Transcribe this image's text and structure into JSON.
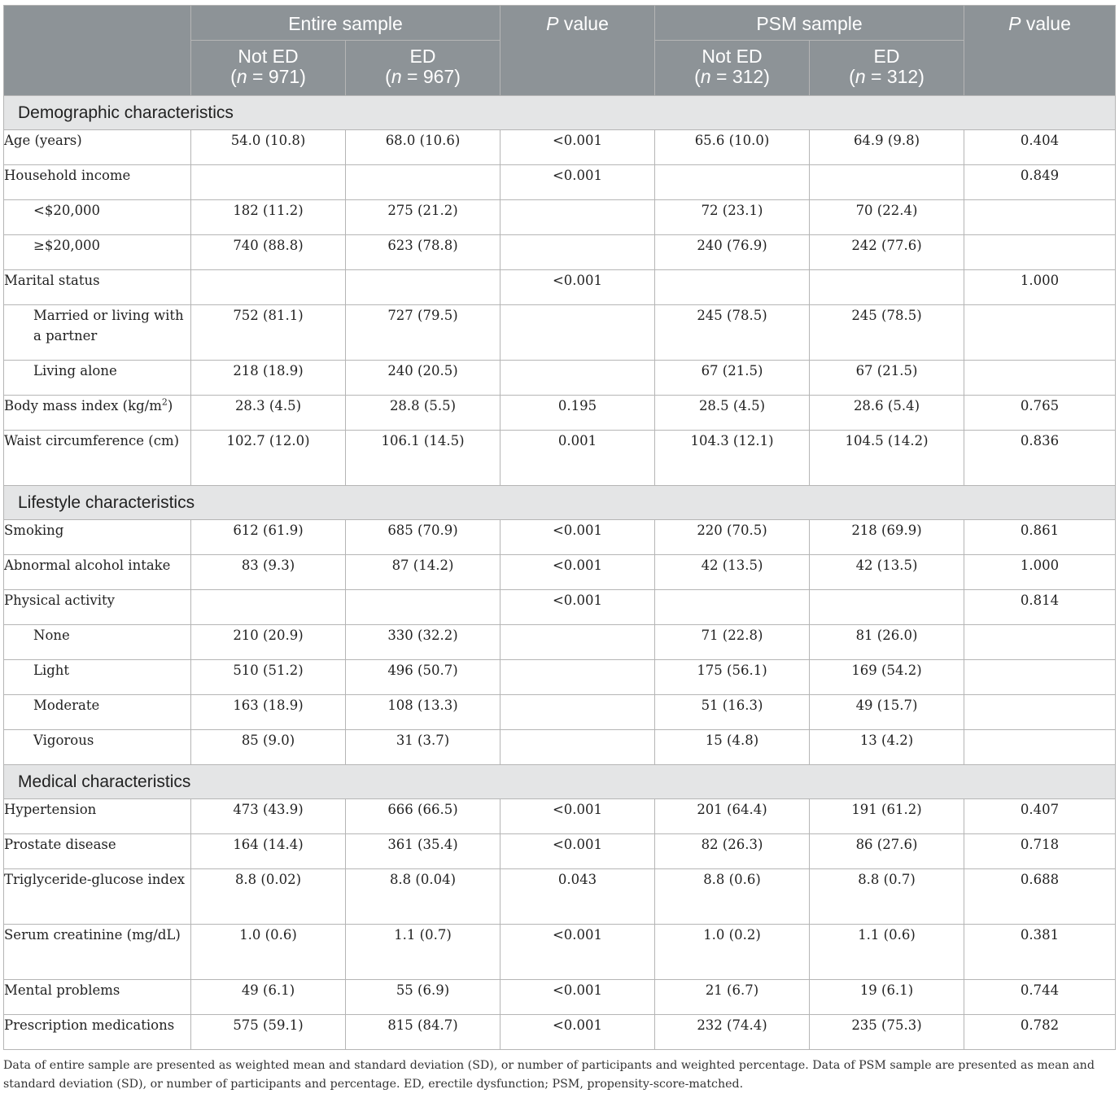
{
  "header": {
    "entire_sample": "Entire sample",
    "psm_sample": "PSM sample",
    "p_value_prefix": "P",
    "p_value_suffix": " value",
    "not_ed": "Not ED",
    "ed": "ED",
    "n_prefix": "n",
    "entire_not_ed_n": " = 971)",
    "entire_ed_n": " = 967)",
    "psm_not_ed_n": " = 312)",
    "psm_ed_n": " = 312)"
  },
  "sections": [
    {
      "title": "Demographic characteristics",
      "rows": [
        {
          "label": "Age (years)",
          "indent": false,
          "tall": false,
          "cells": [
            "54.0 (10.8)",
            "68.0 (10.6)",
            "<0.001",
            "65.6 (10.0)",
            "64.9 (9.8)",
            "0.404"
          ]
        },
        {
          "label": "Household income",
          "indent": false,
          "tall": false,
          "cells": [
            "",
            "",
            "<0.001",
            "",
            "",
            "0.849"
          ]
        },
        {
          "label": "<$20,000",
          "indent": true,
          "tall": false,
          "cells": [
            "182 (11.2)",
            "275 (21.2)",
            "",
            "72 (23.1)",
            "70 (22.4)",
            ""
          ]
        },
        {
          "label": "≥$20,000",
          "indent": true,
          "tall": false,
          "cells": [
            "740 (88.8)",
            "623 (78.8)",
            "",
            "240 (76.9)",
            "242 (77.6)",
            ""
          ]
        },
        {
          "label": "Marital status",
          "indent": false,
          "tall": false,
          "cells": [
            "",
            "",
            "<0.001",
            "",
            "",
            "1.000"
          ]
        },
        {
          "label": "Married or living with a partner",
          "indent": true,
          "tall": true,
          "cells": [
            "752 (81.1)",
            "727 (79.5)",
            "",
            "245 (78.5)",
            "245 (78.5)",
            ""
          ]
        },
        {
          "label": "Living alone",
          "indent": true,
          "tall": false,
          "cells": [
            "218 (18.9)",
            "240 (20.5)",
            "",
            "67 (21.5)",
            "67 (21.5)",
            ""
          ]
        },
        {
          "label": "Body mass index (kg/m",
          "label_sup": "2",
          "label_end": ")",
          "indent": false,
          "tall": false,
          "cells": [
            "28.3 (4.5)",
            "28.8 (5.5)",
            "0.195",
            "28.5 (4.5)",
            "28.6 (5.4)",
            "0.765"
          ]
        },
        {
          "label": "Waist circumference (cm)",
          "indent": false,
          "tall": true,
          "cells": [
            "102.7 (12.0)",
            "106.1 (14.5)",
            "0.001",
            "104.3 (12.1)",
            "104.5 (14.2)",
            "0.836"
          ]
        }
      ]
    },
    {
      "title": "Lifestyle characteristics",
      "rows": [
        {
          "label": "Smoking",
          "indent": false,
          "tall": false,
          "cells": [
            "612 (61.9)",
            "685 (70.9)",
            "<0.001",
            "220 (70.5)",
            "218 (69.9)",
            "0.861"
          ]
        },
        {
          "label": "Abnormal alcohol intake",
          "indent": false,
          "tall": false,
          "cells": [
            "83 (9.3)",
            "87 (14.2)",
            "<0.001",
            "42 (13.5)",
            "42 (13.5)",
            "1.000"
          ]
        },
        {
          "label": "Physical activity",
          "indent": false,
          "tall": false,
          "cells": [
            "",
            "",
            "<0.001",
            "",
            "",
            "0.814"
          ]
        },
        {
          "label": "None",
          "indent": true,
          "tall": false,
          "cells": [
            "210 (20.9)",
            "330 (32.2)",
            "",
            "71 (22.8)",
            "81 (26.0)",
            ""
          ]
        },
        {
          "label": "Light",
          "indent": true,
          "tall": false,
          "cells": [
            "510 (51.2)",
            "496 (50.7)",
            "",
            "175 (56.1)",
            "169 (54.2)",
            ""
          ]
        },
        {
          "label": "Moderate",
          "indent": true,
          "tall": false,
          "cells": [
            "163 (18.9)",
            "108 (13.3)",
            "",
            "51 (16.3)",
            "49 (15.7)",
            ""
          ]
        },
        {
          "label": "Vigorous",
          "indent": true,
          "tall": false,
          "cells": [
            "85 (9.0)",
            "31 (3.7)",
            "",
            "15 (4.8)",
            "13 (4.2)",
            ""
          ]
        }
      ]
    },
    {
      "title": "Medical characteristics",
      "rows": [
        {
          "label": "Hypertension",
          "indent": false,
          "tall": false,
          "cells": [
            "473 (43.9)",
            "666 (66.5)",
            "<0.001",
            "201 (64.4)",
            "191 (61.2)",
            "0.407"
          ]
        },
        {
          "label": "Prostate disease",
          "indent": false,
          "tall": false,
          "cells": [
            "164 (14.4)",
            "361 (35.4)",
            "<0.001",
            "82 (26.3)",
            "86 (27.6)",
            "0.718"
          ]
        },
        {
          "label": "Triglyceride-glucose index",
          "indent": false,
          "tall": true,
          "cells": [
            "8.8 (0.02)",
            "8.8 (0.04)",
            "0.043",
            "8.8 (0.6)",
            "8.8 (0.7)",
            "0.688"
          ]
        },
        {
          "label": "Serum creatinine (mg/dL)",
          "indent": false,
          "tall": true,
          "cells": [
            "1.0 (0.6)",
            "1.1 (0.7)",
            "<0.001",
            "1.0 (0.2)",
            "1.1 (0.6)",
            "0.381"
          ]
        },
        {
          "label": "Mental problems",
          "indent": false,
          "tall": false,
          "cells": [
            "49 (6.1)",
            "55 (6.9)",
            "<0.001",
            "21 (6.7)",
            "19 (6.1)",
            "0.744"
          ]
        },
        {
          "label": "Prescription medications",
          "indent": false,
          "tall": false,
          "cells": [
            "575 (59.1)",
            "815 (84.7)",
            "<0.001",
            "232 (74.4)",
            "235 (75.3)",
            "0.782"
          ]
        }
      ]
    }
  ],
  "footnote": "Data of entire sample are presented as weighted mean and standard deviation (SD), or number of participants and weighted percentage. Data of PSM sample are presented as mean and standard deviation (SD), or number of participants and percentage. ED, erectile dysfunction; PSM, propensity-score-matched."
}
